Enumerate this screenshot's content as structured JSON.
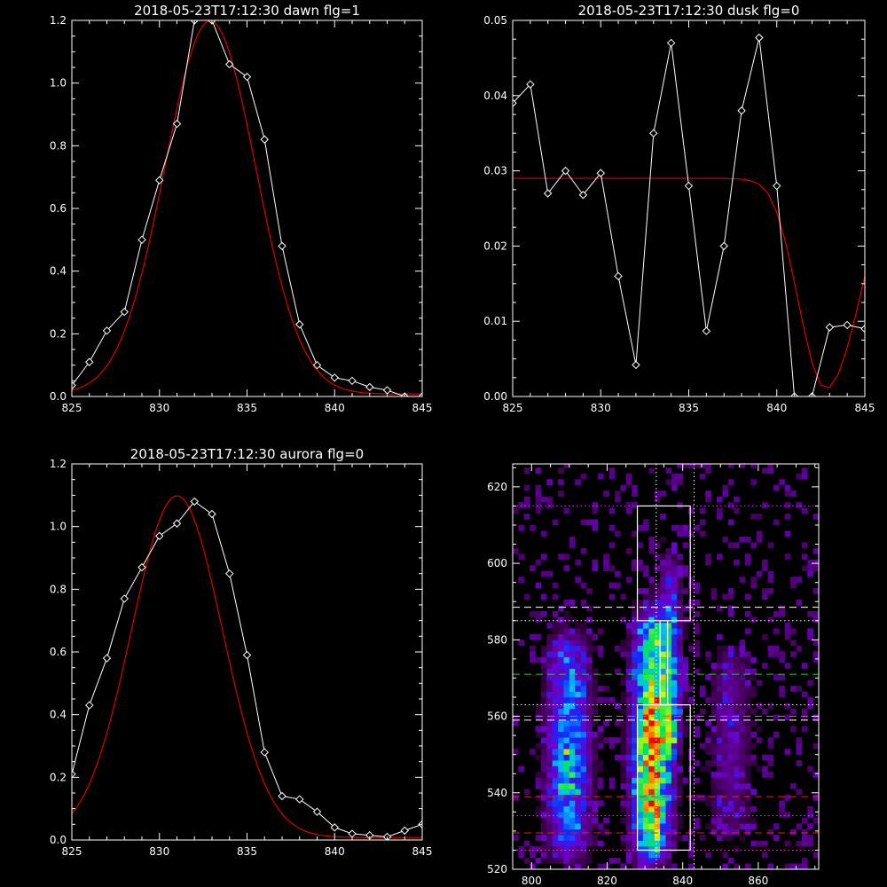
{
  "colors": {
    "background": "#000000",
    "axes": "#ffffff",
    "data_line": "#ffffff",
    "fit_line": "#dd0000",
    "marker": "#ffffff"
  },
  "chart_data": [
    {
      "id": "dawn",
      "type": "line",
      "title": "2018-05-23T17:12:30 dawn flg=1",
      "xlim": [
        825,
        845
      ],
      "ylim": [
        0,
        1.2
      ],
      "xticks": [
        825,
        830,
        835,
        840,
        845
      ],
      "yticks": [
        0.0,
        0.2,
        0.4,
        0.6,
        0.8,
        1.0,
        1.2
      ],
      "ytick_labels": [
        "0.0",
        "0.2",
        "0.4",
        "0.6",
        "0.8",
        "1.0",
        "1.2"
      ],
      "series": [
        {
          "kind": "data",
          "marker": "diamond",
          "x": [
            825,
            826,
            827,
            828,
            829,
            830,
            831,
            832,
            833,
            834,
            835,
            836,
            837,
            838,
            839,
            840,
            841,
            842,
            843,
            844,
            845
          ],
          "y": [
            0.035,
            0.11,
            0.21,
            0.27,
            0.5,
            0.69,
            0.87,
            1.2,
            1.2,
            1.06,
            1.02,
            0.82,
            0.48,
            0.23,
            0.1,
            0.06,
            0.05,
            0.03,
            0.02,
            0.0,
            0.0
          ]
        },
        {
          "kind": "fit",
          "model": "gaussian",
          "amplitude": 1.19,
          "center": 832.9,
          "sigma": 2.6,
          "offset": 0.008
        }
      ]
    },
    {
      "id": "dusk",
      "type": "line",
      "title": "2018-05-23T17:12:30 dusk flg=0",
      "xlim": [
        825,
        845
      ],
      "ylim": [
        0,
        0.05
      ],
      "xticks": [
        825,
        830,
        835,
        840,
        845
      ],
      "yticks": [
        0.0,
        0.01,
        0.02,
        0.03,
        0.04,
        0.05
      ],
      "ytick_labels": [
        "0.00",
        "0.01",
        "0.02",
        "0.03",
        "0.04",
        "0.05"
      ],
      "series": [
        {
          "kind": "data",
          "marker": "diamond",
          "x": [
            825,
            826,
            827,
            828,
            829,
            830,
            831,
            832,
            833,
            834,
            835,
            836,
            837,
            838,
            839,
            840,
            841,
            842,
            843,
            844,
            845
          ],
          "y": [
            0.039,
            0.0415,
            0.027,
            0.03,
            0.0268,
            0.0297,
            0.016,
            0.0042,
            0.035,
            0.047,
            0.028,
            0.0087,
            0.02,
            0.038,
            0.0477,
            0.028,
            0.0,
            0.0,
            0.0092,
            0.0095,
            0.009
          ]
        },
        {
          "kind": "fit",
          "x": [
            825,
            830,
            835,
            837,
            838,
            838.5,
            839,
            839.5,
            840,
            840.5,
            841,
            841.5,
            842,
            842.5,
            843,
            843.5,
            844,
            844.5,
            845
          ],
          "y": [
            0.029,
            0.029,
            0.029,
            0.029,
            0.0289,
            0.0287,
            0.0282,
            0.027,
            0.0245,
            0.0205,
            0.0152,
            0.0095,
            0.0045,
            0.0015,
            0.0012,
            0.003,
            0.0065,
            0.011,
            0.016
          ]
        }
      ]
    },
    {
      "id": "aurora",
      "type": "line",
      "title": "2018-05-23T17:12:30 aurora flg=0",
      "xlim": [
        825,
        845
      ],
      "ylim": [
        0,
        1.2
      ],
      "xticks": [
        825,
        830,
        835,
        840,
        845
      ],
      "yticks": [
        0.0,
        0.2,
        0.4,
        0.6,
        0.8,
        1.0,
        1.2
      ],
      "ytick_labels": [
        "0.0",
        "0.2",
        "0.4",
        "0.6",
        "0.8",
        "1.0",
        "1.2"
      ],
      "series": [
        {
          "kind": "data",
          "marker": "diamond",
          "x": [
            825,
            826,
            827,
            828,
            829,
            830,
            831,
            832,
            833,
            834,
            835,
            836,
            837,
            838,
            839,
            840,
            841,
            842,
            843,
            844,
            845
          ],
          "y": [
            0.21,
            0.43,
            0.58,
            0.77,
            0.87,
            0.97,
            1.01,
            1.08,
            1.04,
            0.85,
            0.59,
            0.28,
            0.14,
            0.13,
            0.09,
            0.04,
            0.02,
            0.015,
            0.01,
            0.03,
            0.05
          ]
        },
        {
          "kind": "fit",
          "model": "gaussian",
          "amplitude": 1.09,
          "center": 831.0,
          "sigma": 2.6,
          "offset": 0.008
        }
      ]
    },
    {
      "id": "image",
      "type": "heatmap",
      "title": "",
      "xlim": [
        795,
        876
      ],
      "ylim": [
        520,
        626
      ],
      "xticks": [
        800,
        820,
        840,
        860
      ],
      "yticks": [
        520,
        540,
        560,
        580,
        600,
        620
      ],
      "ytick_labels": [
        "520",
        "540",
        "560",
        "580",
        "600",
        "620"
      ],
      "colormap": "rainbow",
      "columns": [
        {
          "center": 809,
          "width": 8,
          "y0": 525,
          "y1": 578,
          "peak": 0.55,
          "ypeak": 548
        },
        {
          "center": 831,
          "width": 7,
          "y0": 524,
          "y1": 583,
          "peak": 1.0,
          "ypeak": 548
        },
        {
          "center": 836,
          "width": 4,
          "y0": 552,
          "y1": 598,
          "peak": 0.45,
          "ypeak": 565
        },
        {
          "center": 852,
          "width": 8,
          "y0": 530,
          "y1": 575,
          "peak": 0.2,
          "ypeak": 555
        }
      ],
      "boxes": [
        {
          "x0": 828,
          "x1": 842,
          "y0": 525,
          "y1": 563
        },
        {
          "x0": 828,
          "x1": 842,
          "y0": 585,
          "y1": 615
        },
        {
          "x0": 834,
          "x1": 836,
          "y0": 563,
          "y1": 585
        }
      ],
      "hlines": [
        {
          "y": 615,
          "color": "#cc33ff",
          "style": "dotted"
        },
        {
          "y": 588.5,
          "color": "#ffffff",
          "style": "dashed"
        },
        {
          "y": 585,
          "color": "#ffffff",
          "style": "dotted"
        },
        {
          "y": 571,
          "color": "#22cc22",
          "style": "dashed"
        },
        {
          "y": 563,
          "color": "#ffffff",
          "style": "dotted"
        },
        {
          "y": 560,
          "color": "#22cc22",
          "style": "dashed"
        },
        {
          "y": 559,
          "color": "#ffffff",
          "style": "dashed"
        },
        {
          "y": 539,
          "color": "#dd2222",
          "style": "dashed"
        },
        {
          "y": 534,
          "color": "#ff33cc",
          "style": "dotted"
        },
        {
          "y": 529.5,
          "color": "#dd2222",
          "style": "dashed"
        },
        {
          "y": 525,
          "color": "#ff33cc",
          "style": "dotted"
        }
      ],
      "vlines": [
        {
          "x": 833,
          "color": "#ffffff",
          "style": "dotted"
        },
        {
          "x": 843,
          "color": "#ffffff",
          "style": "dotted"
        }
      ]
    }
  ]
}
